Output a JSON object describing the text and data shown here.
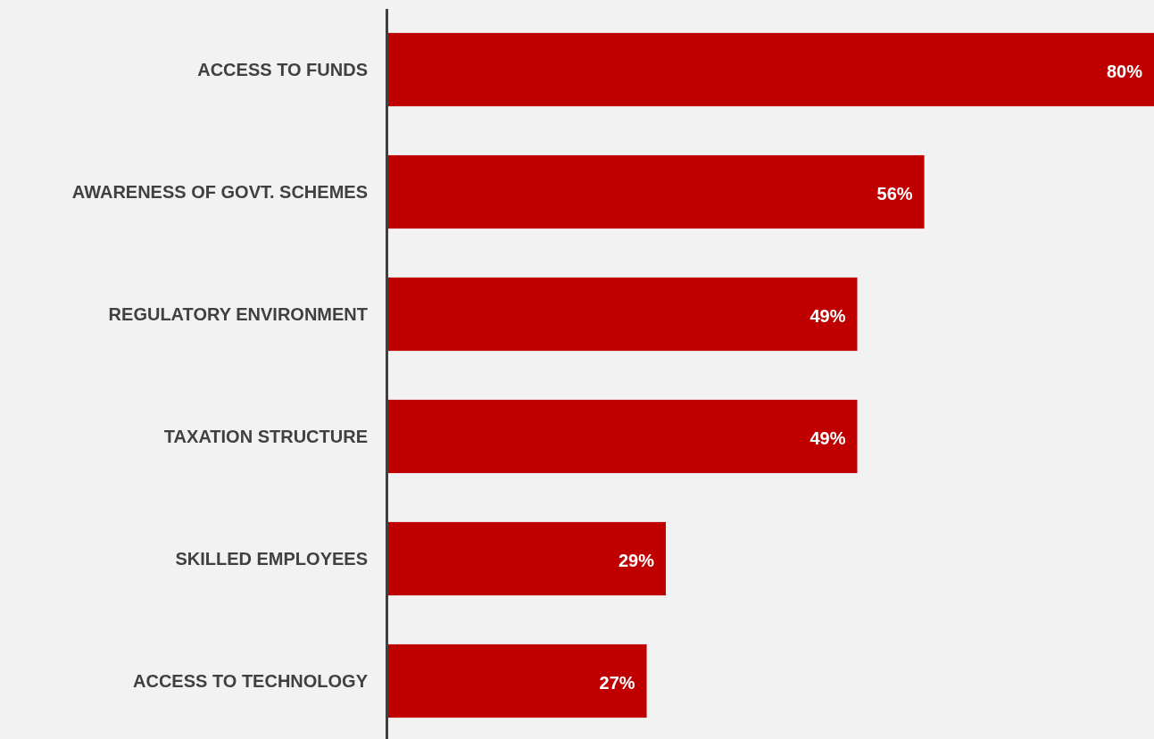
{
  "chart_data": {
    "type": "bar",
    "orientation": "horizontal",
    "categories": [
      "ACCESS TO FUNDS",
      "AWARENESS OF GOVT. SCHEMES",
      "REGULATORY ENVIRONMENT",
      "TAXATION STRUCTURE",
      "SKILLED EMPLOYEES",
      "ACCESS TO TECHNOLOGY"
    ],
    "values": [
      80,
      56,
      49,
      49,
      29,
      27
    ],
    "value_labels": [
      "80%",
      "56%",
      "49%",
      "49%",
      "29%",
      "27%"
    ],
    "color": "#c00000",
    "xlim": [
      0,
      80
    ]
  }
}
